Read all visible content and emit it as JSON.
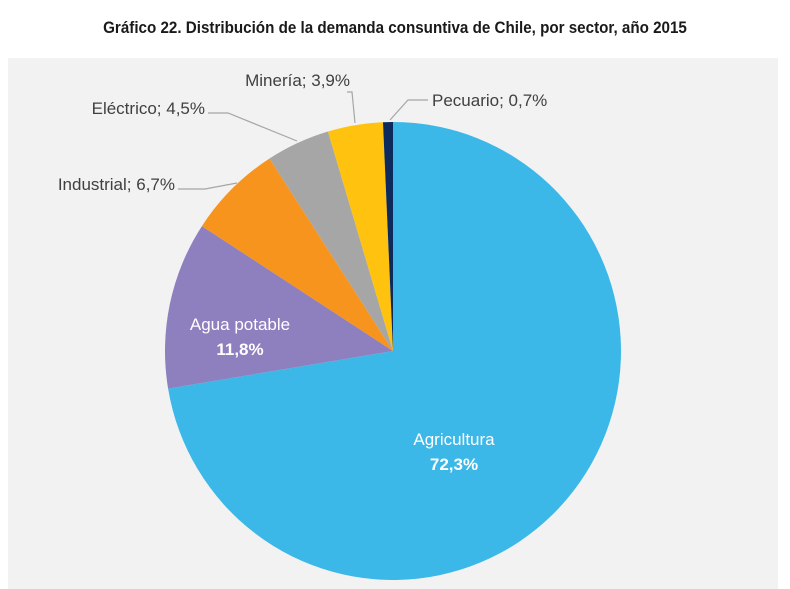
{
  "chart_data": {
    "type": "pie",
    "title": "Gráfico 22. Distribución de la demanda consuntiva de Chile, por sector, año 2015",
    "start_angle": "12 o'clock",
    "direction": "clockwise",
    "slices": [
      {
        "name": "Agricultura",
        "value": 72.3,
        "label": "Agricultura",
        "value_label": "72,3%",
        "color": "#3bb8e8",
        "label_position": "inside"
      },
      {
        "name": "Agua potable",
        "value": 11.8,
        "label": "Agua potable",
        "value_label": "11,8%",
        "color": "#8e7fbf",
        "label_position": "inside"
      },
      {
        "name": "Industrial",
        "value": 6.7,
        "label": "Industrial; 6,7%",
        "color": "#f7941d",
        "label_position": "outside-left"
      },
      {
        "name": "Eléctrico",
        "value": 4.5,
        "label": "Eléctrico; 4,5%",
        "color": "#a6a6a6",
        "label_position": "outside-left"
      },
      {
        "name": "Minería",
        "value": 3.9,
        "label": "Minería; 3,9%",
        "color": "#ffc20e",
        "label_position": "outside-top"
      },
      {
        "name": "Pecuario",
        "value": 0.7,
        "label": "Pecuario; 0,7%",
        "color": "#0d2a5c",
        "label_position": "outside-right"
      }
    ],
    "background": "#f2f2f2",
    "leader_line_color": "#a6a6a6"
  }
}
